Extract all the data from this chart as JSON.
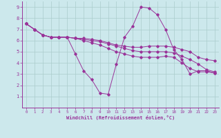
{
  "xlabel": "Windchill (Refroidissement éolien,°C)",
  "background_color": "#cce8ec",
  "line_color": "#993399",
  "grid_color": "#aacccc",
  "xlim": [
    -0.5,
    23.5
  ],
  "ylim": [
    0,
    9.5
  ],
  "xticks": [
    0,
    1,
    2,
    3,
    4,
    5,
    6,
    7,
    8,
    9,
    10,
    11,
    12,
    13,
    14,
    15,
    16,
    17,
    18,
    19,
    20,
    21,
    22,
    23
  ],
  "yticks": [
    1,
    2,
    3,
    4,
    5,
    6,
    7,
    8,
    9
  ],
  "series": [
    {
      "x": [
        0,
        1,
        2,
        3,
        4,
        5,
        6,
        7,
        8,
        9,
        10,
        11,
        12,
        13,
        14,
        15,
        16,
        17,
        18,
        19,
        20,
        21,
        22,
        23
      ],
      "y": [
        7.5,
        7.0,
        6.5,
        6.3,
        6.3,
        6.3,
        4.8,
        3.3,
        2.5,
        1.3,
        1.2,
        3.9,
        6.3,
        7.3,
        9.0,
        8.9,
        8.3,
        7.0,
        5.2,
        4.3,
        3.0,
        3.3,
        3.3,
        3.1
      ]
    },
    {
      "x": [
        0,
        1,
        2,
        3,
        4,
        5,
        6,
        7,
        8,
        9,
        10,
        11,
        12,
        13,
        14,
        15,
        16,
        17,
        18,
        19,
        20,
        21,
        22,
        23
      ],
      "y": [
        7.5,
        7.0,
        6.5,
        6.3,
        6.3,
        6.3,
        6.2,
        6.2,
        6.1,
        6.0,
        5.8,
        5.6,
        5.5,
        5.4,
        5.4,
        5.5,
        5.5,
        5.5,
        5.4,
        5.2,
        5.0,
        4.5,
        4.3,
        4.2
      ]
    },
    {
      "x": [
        0,
        1,
        2,
        3,
        4,
        5,
        6,
        7,
        8,
        9,
        10,
        11,
        12,
        13,
        14,
        15,
        16,
        17,
        18,
        19,
        20,
        21,
        22,
        23
      ],
      "y": [
        7.5,
        7.0,
        6.5,
        6.3,
        6.3,
        6.3,
        6.2,
        6.1,
        6.0,
        5.9,
        5.7,
        5.5,
        5.3,
        5.1,
        5.0,
        5.0,
        5.0,
        5.0,
        4.9,
        4.6,
        4.3,
        3.9,
        3.4,
        3.2
      ]
    },
    {
      "x": [
        0,
        1,
        2,
        3,
        4,
        5,
        6,
        7,
        8,
        9,
        10,
        11,
        12,
        13,
        14,
        15,
        16,
        17,
        18,
        19,
        20,
        21,
        22,
        23
      ],
      "y": [
        7.5,
        7.0,
        6.5,
        6.3,
        6.3,
        6.3,
        6.2,
        6.0,
        5.8,
        5.6,
        5.3,
        5.0,
        4.8,
        4.6,
        4.5,
        4.5,
        4.5,
        4.6,
        4.5,
        4.0,
        3.5,
        3.2,
        3.2,
        3.1
      ]
    }
  ]
}
